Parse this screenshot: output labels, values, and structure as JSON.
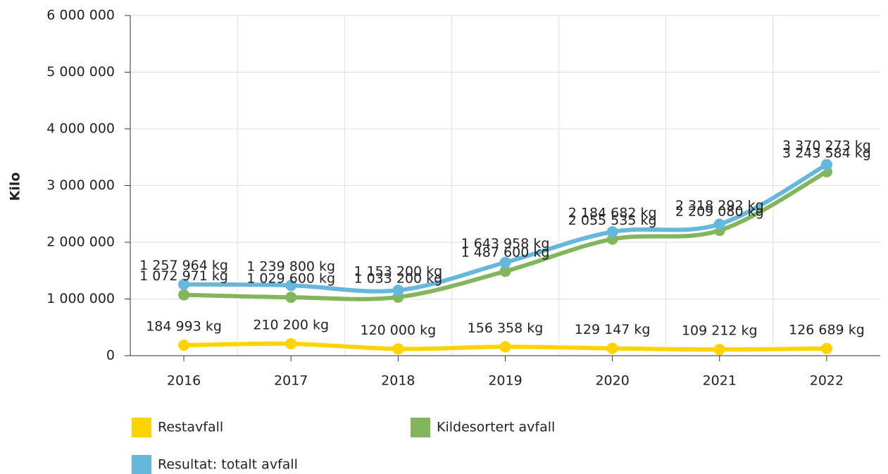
{
  "chart_data": {
    "type": "line",
    "y_label": "Kilo",
    "categories": [
      "2016",
      "2017",
      "2018",
      "2019",
      "2020",
      "2021",
      "2022"
    ],
    "series": [
      {
        "name": "Restavfall",
        "color": "#ffd300",
        "values": [
          184993,
          210200,
          120000,
          156358,
          129147,
          109212,
          126689
        ],
        "value_labels": [
          "184 993 kg",
          "210 200 kg",
          "120 000 kg",
          "156 358 kg",
          "129 147 kg",
          "109 212 kg",
          "126 689 kg"
        ]
      },
      {
        "name": "Kildesortert avfall",
        "color": "#82b55c",
        "values": [
          1072971,
          1029600,
          1033200,
          1487600,
          2055535,
          2209080,
          3243584
        ],
        "value_labels": [
          "1 072 971 kg",
          "1 029 600 kg",
          "1 033 200 kg",
          "1 487 600 kg",
          "2 055 535 kg",
          "2 209 080 kg",
          "3 243 584 kg"
        ]
      },
      {
        "name": "Resultat: totalt avfall",
        "color": "#65b7dc",
        "values": [
          1257964,
          1239800,
          1153200,
          1643958,
          2184682,
          2318292,
          3370273
        ],
        "value_labels": [
          "1 257 964 kg",
          "1 239 800 kg",
          "1 153 200 kg",
          "1 643 958 kg",
          "2 184 682 kg",
          "2 318 292 kg",
          "3 370 273 kg"
        ]
      }
    ],
    "ylim": [
      0,
      6000000
    ],
    "yticks": [
      0,
      {
        "value": 1000000,
        "label": "1 000 000"
      },
      {
        "value": 2000000,
        "label": "2 000 000"
      },
      {
        "value": 3000000,
        "label": "3 000 000"
      },
      {
        "value": 4000000,
        "label": "4 000 000"
      },
      {
        "value": 5000000,
        "label": "5 000 000"
      },
      {
        "value": 6000000,
        "label": "6 000 000"
      }
    ],
    "grid": true
  }
}
